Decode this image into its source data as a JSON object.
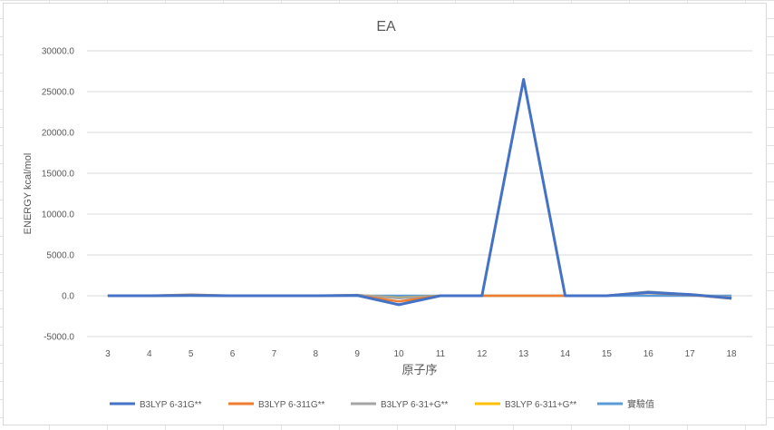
{
  "chart_data": {
    "type": "line",
    "title": "EA",
    "xlabel": "原子序",
    "ylabel": "ENERGY kcal/mol",
    "categories": [
      "3",
      "4",
      "5",
      "6",
      "7",
      "8",
      "9",
      "10",
      "11",
      "12",
      "13",
      "14",
      "15",
      "16",
      "17",
      "18"
    ],
    "ylim": [
      -5000,
      30000
    ],
    "yticks": [
      "-5000.0",
      "0.0",
      "5000.0",
      "10000.0",
      "15000.0",
      "20000.0",
      "25000.0",
      "30000.0"
    ],
    "ytick_values": [
      -5000,
      0,
      5000,
      10000,
      15000,
      20000,
      25000,
      30000
    ],
    "grid": true,
    "legend_position": "bottom",
    "series": [
      {
        "name": "B3LYP 6-31G**",
        "color": "#4472C4",
        "values": [
          0,
          0,
          50,
          0,
          0,
          0,
          50,
          -1100,
          0,
          0,
          26500,
          0,
          0,
          400,
          150,
          -300
        ]
      },
      {
        "name": "B3LYP 6-311G**",
        "color": "#ED7D31",
        "values": [
          0,
          0,
          100,
          0,
          0,
          0,
          50,
          -700,
          0,
          0,
          0,
          0,
          0,
          350,
          100,
          -350
        ]
      },
      {
        "name": "B3LYP 6-31+G**",
        "color": "#A5A5A5",
        "values": [
          0,
          0,
          150,
          0,
          0,
          0,
          100,
          -300,
          0,
          0,
          0,
          0,
          0,
          500,
          150,
          -200
        ]
      },
      {
        "name": "B3LYP 6-311+G**",
        "color": "#FFC000",
        "values": [
          0,
          0,
          100,
          0,
          0,
          0,
          80,
          -250,
          0,
          0,
          0,
          0,
          0,
          450,
          120,
          -200
        ]
      },
      {
        "name": "實驗值",
        "color": "#5B9BD5",
        "values": [
          0,
          0,
          0,
          0,
          0,
          0,
          0,
          0,
          0,
          0,
          0,
          0,
          0,
          0,
          0,
          0
        ]
      }
    ]
  }
}
